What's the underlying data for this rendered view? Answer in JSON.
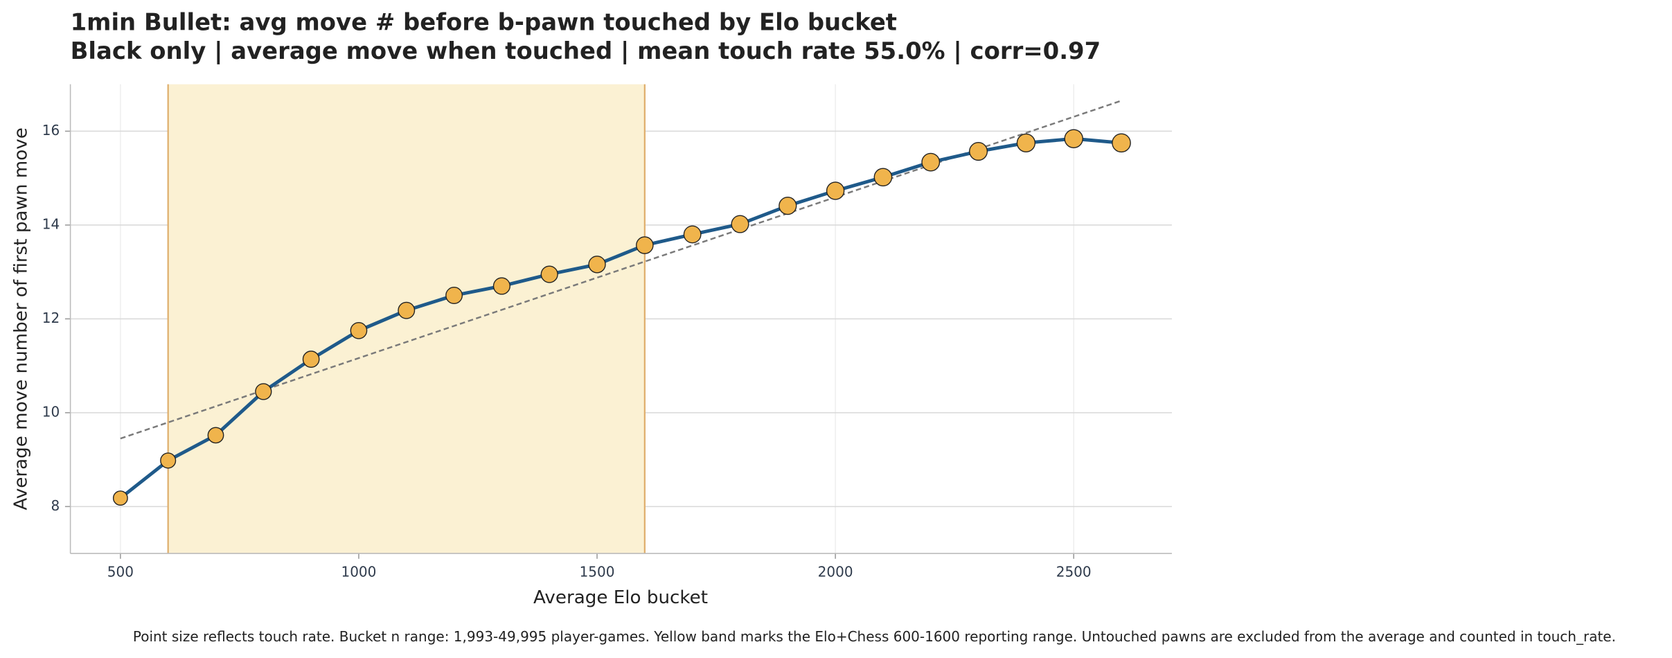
{
  "chart_data": {
    "type": "line",
    "title": "1min Bullet: avg move # before b-pawn touched by Elo bucket",
    "subtitle": "Black only | average move when touched | mean touch rate 55.0% | corr=0.97",
    "x_label": "Average Elo bucket",
    "y_label": "Average move number of first pawn move",
    "footnote": "Point size reflects touch rate. Bucket n range: 1,993-49,995 player-games. Yellow band marks the Elo+Chess 600-1600 reporting range. Untouched pawns are excluded from the average and counted in touch_rate.",
    "x": [
      500,
      600,
      700,
      800,
      900,
      1000,
      1100,
      1200,
      1300,
      1400,
      1500,
      1600,
      1700,
      1800,
      1900,
      2000,
      2100,
      2200,
      2300,
      2400,
      2500,
      2600
    ],
    "values": [
      8.18,
      8.98,
      9.52,
      10.45,
      11.14,
      11.75,
      12.18,
      12.5,
      12.7,
      12.95,
      13.16,
      13.57,
      13.8,
      14.02,
      14.41,
      14.73,
      15.02,
      15.34,
      15.57,
      15.75,
      15.84,
      15.75
    ],
    "sizes": [
      40,
      45,
      48,
      50,
      52,
      52,
      53,
      53,
      54,
      54,
      55,
      56,
      57,
      58,
      59,
      60,
      61,
      62,
      63,
      64,
      65,
      66
    ],
    "color": "#1f5a8a",
    "marker_color": "#f0b44c",
    "trend": {
      "x": [
        500,
        2600
      ],
      "values": [
        9.45,
        16.65
      ],
      "color": "#7a7a7a"
    },
    "band": [
      600,
      1600
    ],
    "band_color": "#fbf1d3",
    "band_edge_color": "#e0b070",
    "xlim": [
      395,
      2706
    ],
    "ylim": [
      7,
      17
    ],
    "xticks": [
      500,
      1000,
      1500,
      2000,
      2500
    ],
    "yticks": [
      8,
      10,
      12,
      14,
      16
    ],
    "grid": true
  }
}
